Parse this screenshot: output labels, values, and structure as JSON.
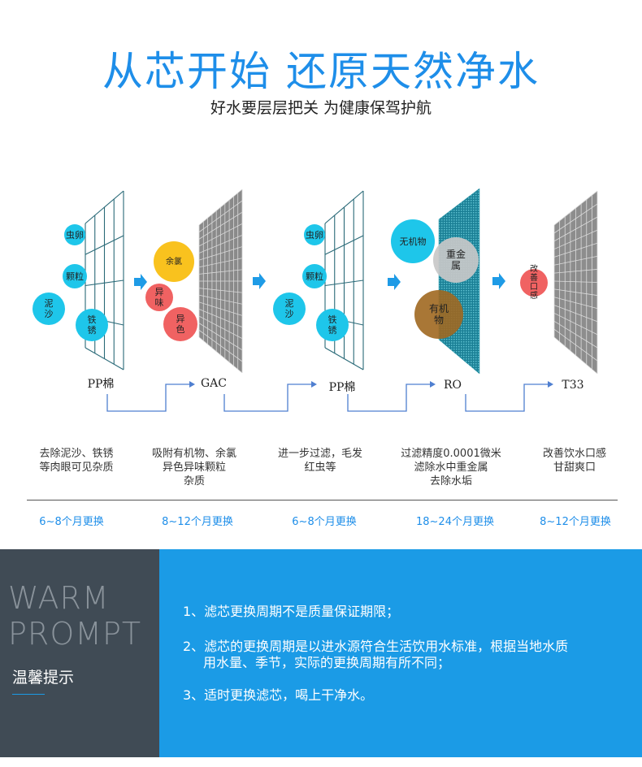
{
  "header": {
    "title": "从芯开始 还原天然净水",
    "subtitle": "好水要层层把关 为健康保驾护航"
  },
  "colors": {
    "accent": "#1e8ee9",
    "cyan": "#1ec6ea",
    "yellow": "#f9c21e",
    "red": "#f06262",
    "brown": "#a06820",
    "gray": "#c8c8c8",
    "panel_dark": "#404b55",
    "panel_blue": "#1b9be6"
  },
  "stages": [
    {
      "name": "PP棉",
      "particles": [
        "虫卵",
        "颗粒",
        "泥沙",
        "铁锈"
      ],
      "desc": [
        "去除泥沙、铁锈",
        "等肉眼可见杂质"
      ],
      "replace": "6~8个月更换"
    },
    {
      "name": "GAC",
      "particles": [
        "余氯",
        "异味",
        "异色"
      ],
      "desc": [
        "吸附有机物、余氯",
        "异色异味颗粒",
        "杂质"
      ],
      "replace": "8~12个月更换"
    },
    {
      "name": "PP棉",
      "particles": [
        "虫卵",
        "颗粒",
        "泥沙",
        "铁锈"
      ],
      "desc": [
        "进一步过滤，毛发",
        "红虫等"
      ],
      "replace": "6~8个月更换"
    },
    {
      "name": "RO",
      "particles": [
        "无机物",
        "重金属",
        "有机物"
      ],
      "desc": [
        "过滤精度0.0001微米",
        "滤除水中重金属",
        "去除水垢"
      ],
      "replace": "18~24个月更换"
    },
    {
      "name": "T33",
      "particles": [
        "改善口感"
      ],
      "desc": [
        "改善饮水口感",
        "甘甜爽口"
      ],
      "replace": "8~12个月更换"
    }
  ],
  "prompt": {
    "en1": "WARM",
    "en2": "PROMPT",
    "cn": "温馨提示",
    "tips": [
      "1、滤芯更换周期不是质量保证期限；",
      "2、滤芯的更换周期是以进水源符合生活饮用水标准，根据当地水质",
      "用水量、季节，实际的更换周期有所不同；",
      "3、适时更换滤芯，喝上干净水。"
    ]
  }
}
